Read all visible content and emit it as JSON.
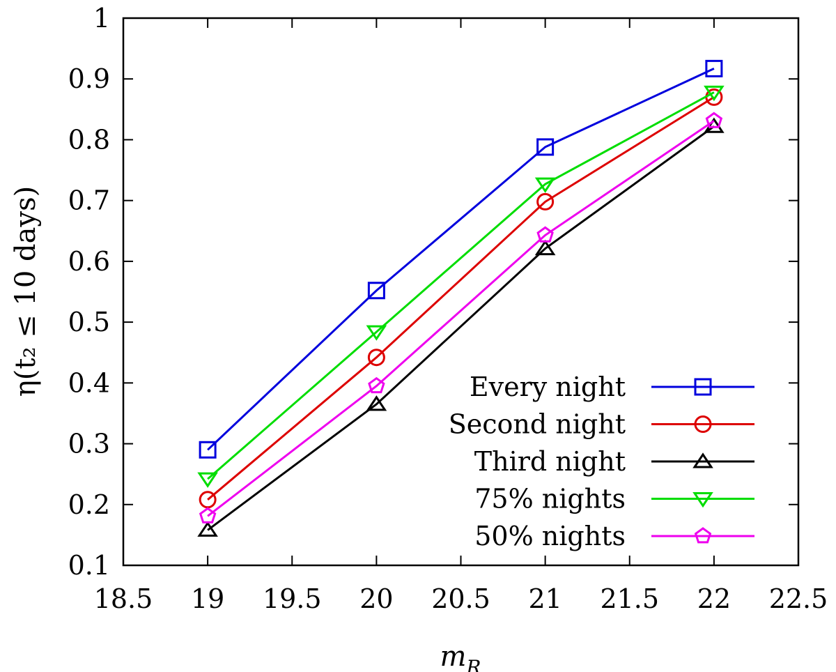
{
  "chart_data": {
    "type": "line",
    "title": "",
    "xlabel": "m_R",
    "ylabel": "η(t₂ ≤ 10 days)",
    "xlim": [
      18.5,
      22.5
    ],
    "ylim": [
      0.1,
      1.0
    ],
    "x_ticks": [
      "18.5",
      "19",
      "19.5",
      "20",
      "20.5",
      "21",
      "21.5",
      "22",
      "22.5"
    ],
    "y_ticks": [
      "0.1",
      "0.2",
      "0.3",
      "0.4",
      "0.5",
      "0.6",
      "0.7",
      "0.8",
      "0.9",
      "1"
    ],
    "x": [
      19,
      20,
      21,
      22
    ],
    "grid": false,
    "legend_position": "bottom-right",
    "series": [
      {
        "name": "Every night",
        "color": "#0000dd",
        "marker": "square",
        "values": [
          0.29,
          0.552,
          0.788,
          0.917
        ]
      },
      {
        "name": "Second night",
        "color": "#dd0000",
        "marker": "circle",
        "values": [
          0.208,
          0.442,
          0.698,
          0.87
        ]
      },
      {
        "name": "Third night",
        "color": "#000000",
        "marker": "triangle-up",
        "values": [
          0.158,
          0.365,
          0.621,
          0.822
        ]
      },
      {
        "name": "75% nights",
        "color": "#00dd00",
        "marker": "triangle-down",
        "values": [
          0.242,
          0.484,
          0.727,
          0.878
        ]
      },
      {
        "name": "50% nights",
        "color": "#ee00ee",
        "marker": "pentagon",
        "values": [
          0.181,
          0.395,
          0.643,
          0.831
        ]
      }
    ]
  }
}
